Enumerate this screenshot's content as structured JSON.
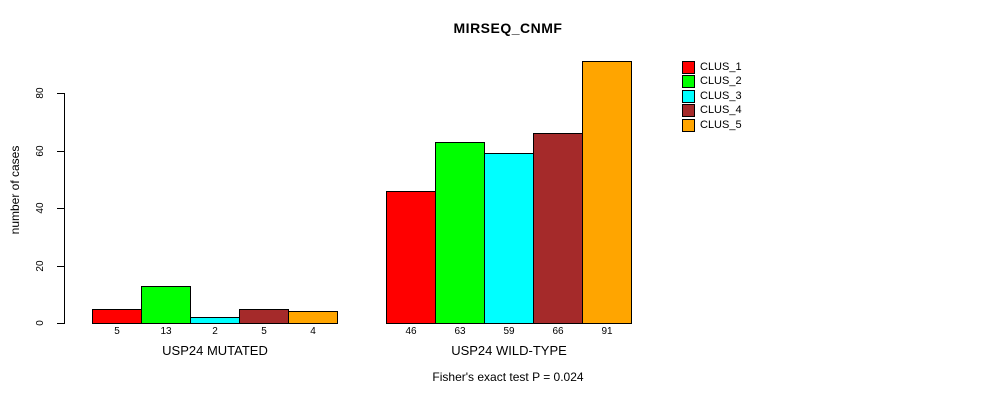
{
  "title": "MIRSEQ_CNMF",
  "ylabel": "number of cases",
  "footnote": "Fisher's exact test P = 0.024",
  "legend": {
    "position": "right",
    "items": [
      {
        "label": "CLUS_1",
        "color": "#FF0000"
      },
      {
        "label": "CLUS_2",
        "color": "#00FF00"
      },
      {
        "label": "CLUS_3",
        "color": "#00FFFF"
      },
      {
        "label": "CLUS_4",
        "color": "#A52A2A"
      },
      {
        "label": "CLUS_5",
        "color": "#FFA500"
      }
    ]
  },
  "chart_data": {
    "type": "bar",
    "title": "MIRSEQ_CNMF",
    "xlabel": "",
    "ylabel": "number of cases",
    "yticks": [
      0,
      20,
      40,
      60,
      80
    ],
    "ylim": [
      0,
      91
    ],
    "grid": false,
    "legend_position": "right",
    "series_labels": [
      "CLUS_1",
      "CLUS_2",
      "CLUS_3",
      "CLUS_4",
      "CLUS_5"
    ],
    "colors": [
      "#FF0000",
      "#00FF00",
      "#00FFFF",
      "#A52A2A",
      "#FFA500"
    ],
    "groups": [
      {
        "label": "USP24 MUTATED",
        "values": [
          5,
          13,
          2,
          5,
          4
        ],
        "value_labels": [
          "5",
          "13",
          "2",
          "5",
          "4"
        ]
      },
      {
        "label": "USP24 WILD-TYPE",
        "values": [
          46,
          63,
          59,
          66,
          91
        ],
        "value_labels": [
          "46",
          "63",
          "59",
          "66",
          "91"
        ]
      }
    ],
    "annotation": "Fisher's exact test P = 0.024"
  }
}
